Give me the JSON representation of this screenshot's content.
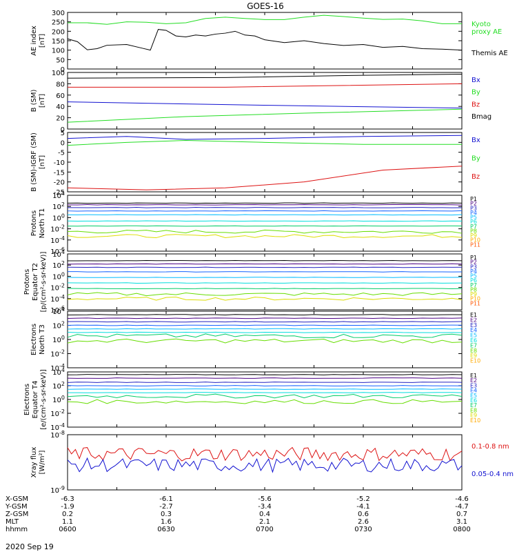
{
  "title": "GOES-16",
  "date_label": "2020 Sep 19",
  "colors": {
    "black": "#000000",
    "green": "#22dd22",
    "blue": "#1010d0",
    "red": "#dd1111"
  },
  "chart_data": [
    {
      "id": "ae",
      "type": "line",
      "ylabel": [
        "AE index",
        "[nT]"
      ],
      "ylim": [
        0,
        300
      ],
      "yticks": [
        "0",
        "50",
        "100",
        "150",
        "200",
        "250",
        "300"
      ],
      "series": [
        {
          "name": "Kyoto proxy AE",
          "label_lines": [
            "Kyoto",
            "proxy AE"
          ],
          "color": "#22dd22",
          "values": [
            [
              0,
              245
            ],
            [
              10,
              245
            ],
            [
              20,
              237
            ],
            [
              30,
              250
            ],
            [
              40,
              248
            ],
            [
              50,
              240
            ],
            [
              60,
              245
            ],
            [
              70,
              268
            ],
            [
              80,
              275
            ],
            [
              90,
              268
            ],
            [
              100,
              262
            ],
            [
              110,
              262
            ],
            [
              120,
              275
            ],
            [
              130,
              285
            ],
            [
              140,
              278
            ],
            [
              150,
              270
            ],
            [
              160,
              263
            ],
            [
              170,
              265
            ],
            [
              180,
              255
            ],
            [
              190,
              240
            ],
            [
              200,
              240
            ]
          ]
        },
        {
          "name": "Themis AE",
          "label_lines": [
            "Themis AE"
          ],
          "color": "#000000",
          "values": [
            [
              0,
              160
            ],
            [
              5,
              145
            ],
            [
              10,
              102
            ],
            [
              15,
              108
            ],
            [
              20,
              126
            ],
            [
              30,
              130
            ],
            [
              38,
              110
            ],
            [
              42,
              100
            ],
            [
              46,
              210
            ],
            [
              50,
              205
            ],
            [
              55,
              175
            ],
            [
              60,
              170
            ],
            [
              65,
              180
            ],
            [
              70,
              175
            ],
            [
              75,
              185
            ],
            [
              80,
              190
            ],
            [
              85,
              200
            ],
            [
              90,
              180
            ],
            [
              95,
              175
            ],
            [
              100,
              155
            ],
            [
              110,
              140
            ],
            [
              120,
              150
            ],
            [
              130,
              135
            ],
            [
              140,
              125
            ],
            [
              150,
              130
            ],
            [
              160,
              115
            ],
            [
              170,
              120
            ],
            [
              180,
              108
            ],
            [
              190,
              105
            ],
            [
              200,
              100
            ]
          ]
        }
      ]
    },
    {
      "id": "bsm",
      "type": "line",
      "ylabel": [
        "B (SM)",
        "[nT]"
      ],
      "ylim": [
        0,
        100
      ],
      "yticks": [
        "0",
        "20",
        "40",
        "60",
        "80",
        "100"
      ],
      "series": [
        {
          "name": "Bx",
          "color": "#1010d0",
          "values": [
            [
              0,
              48
            ],
            [
              100,
              42
            ],
            [
              200,
              37
            ]
          ]
        },
        {
          "name": "By",
          "color": "#22dd22",
          "values": [
            [
              0,
              12
            ],
            [
              60,
              22
            ],
            [
              120,
              28
            ],
            [
              200,
              35
            ]
          ]
        },
        {
          "name": "Bz",
          "color": "#dd1111",
          "values": [
            [
              0,
              74
            ],
            [
              80,
              74
            ],
            [
              140,
              77
            ],
            [
              200,
              80
            ]
          ]
        },
        {
          "name": "Bmag",
          "color": "#000000",
          "values": [
            [
              0,
              90
            ],
            [
              80,
              91
            ],
            [
              150,
              95
            ],
            [
              200,
              97
            ]
          ]
        }
      ]
    },
    {
      "id": "bigrf",
      "type": "line",
      "ylabel": [
        "B (SM)-IGRF (SM)",
        "[nT]"
      ],
      "ylim": [
        -25,
        5
      ],
      "yticks": [
        "-25",
        "-20",
        "-15",
        "-10",
        "-5",
        "0",
        "5"
      ],
      "series": [
        {
          "name": "Bx",
          "color": "#1010d0",
          "values": [
            [
              0,
              2
            ],
            [
              30,
              3
            ],
            [
              60,
              1.5
            ],
            [
              100,
              2
            ],
            [
              150,
              3
            ],
            [
              200,
              3.5
            ]
          ]
        },
        {
          "name": "By",
          "color": "#22dd22",
          "values": [
            [
              0,
              -1.5
            ],
            [
              30,
              0
            ],
            [
              60,
              1
            ],
            [
              100,
              0
            ],
            [
              150,
              -1
            ],
            [
              200,
              -1
            ]
          ]
        },
        {
          "name": "Bz",
          "color": "#dd1111",
          "values": [
            [
              0,
              -23
            ],
            [
              40,
              -24
            ],
            [
              80,
              -23
            ],
            [
              120,
              -20
            ],
            [
              160,
              -14
            ],
            [
              200,
              -12
            ]
          ]
        }
      ]
    },
    {
      "id": "prot_n",
      "type": "line",
      "log": true,
      "ylabel": [
        "Protons",
        "North T1"
      ],
      "ylim": [
        -6,
        4
      ],
      "yticks": [
        "10<sup>-6</sup>",
        "10<sup>-4</sup>",
        "10<sup>-2</sup>",
        "10<sup>0</sup>",
        "10<sup>2</sup>",
        "10<sup>4</sup>"
      ],
      "legend": [
        "P1",
        "P2",
        "P3",
        "P4",
        "P5",
        "P6",
        "P7",
        "P8",
        "P9",
        "P10",
        "P11"
      ],
      "legend_colors": [
        "#000000",
        "#4b0082",
        "#2020c0",
        "#1060ff",
        "#00bbff",
        "#00dddd",
        "#00cc66",
        "#66dd00",
        "#dddd00",
        "#ffaa00",
        "#ff5500"
      ],
      "series_levels": [
        2.6,
        2.3,
        1.8,
        1.2,
        0.5,
        -0.6,
        -1.5,
        -2.5,
        -3.3
      ]
    },
    {
      "id": "prot_e",
      "type": "line",
      "log": true,
      "ylabel": [
        "Protons",
        "Equator T2",
        "[p/(cm²-s-sr-keV)]"
      ],
      "ylim": [
        -6,
        4
      ],
      "yticks": [
        "10<sup>-6</sup>",
        "10<sup>-4</sup>",
        "10<sup>-2</sup>",
        "10<sup>0</sup>",
        "10<sup>2</sup>",
        "10<sup>4</sup>"
      ],
      "legend": [
        "P1",
        "P2",
        "P3",
        "P4",
        "P5",
        "P6",
        "P7",
        "P8",
        "P9",
        "P10",
        "P11"
      ],
      "legend_colors": [
        "#000000",
        "#4b0082",
        "#2020c0",
        "#1060ff",
        "#00bbff",
        "#00dddd",
        "#00cc66",
        "#66dd00",
        "#dddd00",
        "#ffaa00",
        "#ff5500"
      ],
      "series_levels": [
        2.8,
        2.2,
        1.6,
        0.8,
        -0.2,
        -1.2,
        -2.2,
        -3.2,
        -4.0
      ]
    },
    {
      "id": "elec_n",
      "type": "line",
      "log": true,
      "ylabel": [
        "Electrons",
        "North T3"
      ],
      "ylim": [
        -4,
        4
      ],
      "yticks": [
        "10<sup>-4</sup>",
        "10<sup>-2</sup>",
        "10<sup>0</sup>",
        "10<sup>2</sup>",
        "10<sup>4</sup>"
      ],
      "legend": [
        "E1",
        "E2",
        "E3",
        "E4",
        "E5",
        "E6",
        "E7",
        "E8",
        "E9",
        "E10"
      ],
      "legend_colors": [
        "#000000",
        "#4b0082",
        "#2020c0",
        "#1060ff",
        "#00bbff",
        "#00dddd",
        "#00cc66",
        "#66dd00",
        "#dddd00",
        "#ffaa00"
      ],
      "series_levels": [
        3.5,
        3.0,
        2.5,
        2.0,
        1.5,
        1.0,
        0.5,
        -0.2
      ]
    },
    {
      "id": "elec_e",
      "type": "line",
      "log": true,
      "ylabel": [
        "Electrons",
        "Equator T4",
        "[e/(cm²-s-sr-keV)]"
      ],
      "ylim": [
        -4,
        4
      ],
      "yticks": [
        "10<sup>-4</sup>",
        "10<sup>-2</sup>",
        "10<sup>0</sup>",
        "10<sup>2</sup>",
        "10<sup>4</sup>"
      ],
      "legend": [
        "E1",
        "E2",
        "E3",
        "E4",
        "E5",
        "E6",
        "E7",
        "E8",
        "E9",
        "E10"
      ],
      "legend_colors": [
        "#000000",
        "#4b0082",
        "#2020c0",
        "#1060ff",
        "#00bbff",
        "#00dddd",
        "#00cc66",
        "#66dd00",
        "#dddd00",
        "#ffaa00"
      ],
      "series_levels": [
        3.6,
        3.1,
        2.5,
        2.0,
        1.5,
        1.0,
        0.5,
        -0.3
      ]
    },
    {
      "id": "xray",
      "type": "line",
      "log": true,
      "ylabel": [
        "Xray flux",
        "[W/m²]"
      ],
      "ylim": [
        -9,
        -8
      ],
      "yticks": [
        "10<sup>-9</sup>",
        "10<sup>-8</sup>"
      ],
      "series": [
        {
          "name": "0.1-0.8 nm",
          "color": "#dd1111"
        },
        {
          "name": "0.05-0.4 nm",
          "color": "#1010d0"
        }
      ]
    }
  ],
  "x_axis": {
    "labels": [
      "X-GSM",
      "Y-GSM",
      "Z-GSM",
      "MLT",
      "hhmm"
    ],
    "columns": [
      [
        "-6.3",
        "-1.9",
        "0.2",
        "1.1",
        "0600"
      ],
      [
        "-6.1",
        "-2.7",
        "0.3",
        "1.6",
        "0630"
      ],
      [
        "-5.6",
        "-3.4",
        "0.4",
        "2.1",
        "0700"
      ],
      [
        "-5.2",
        "-4.1",
        "0.6",
        "2.6",
        "0730"
      ],
      [
        "-4.6",
        "-4.7",
        "0.7",
        "3.1",
        "0800"
      ]
    ]
  }
}
